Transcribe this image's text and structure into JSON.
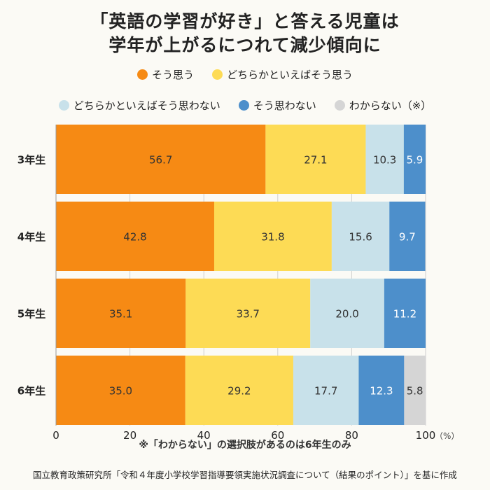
{
  "title_line1": "「英語の学習が好き」と答える児童は",
  "title_line2": "学年が上がるにつれて減少傾向に",
  "footnote": "※「わからない」の選択肢があるのは6年生のみ",
  "source": "国立教育政策研究所「令和４年度小学校学習指導要領実施状況調査について（結果のポイント）」を基に作成",
  "chart_data": {
    "type": "bar",
    "orientation": "horizontal",
    "stacked": true,
    "categories": [
      "3年生",
      "4年生",
      "5年生",
      "6年生"
    ],
    "series": [
      {
        "name": "そう思う",
        "color": "#f68a14",
        "values": [
          56.7,
          42.8,
          35.1,
          35.0
        ]
      },
      {
        "name": "どちらかといえばそう思う",
        "color": "#fddb55",
        "values": [
          27.1,
          31.8,
          33.7,
          29.2
        ]
      },
      {
        "name": "どちらかといえばそう思わない",
        "color": "#c8e1ea",
        "values": [
          10.3,
          15.6,
          20.0,
          17.7
        ]
      },
      {
        "name": "そう思わない",
        "color": "#4d8fcb",
        "values": [
          5.9,
          9.7,
          11.2,
          12.3
        ]
      },
      {
        "name": "わからない（※）",
        "color": "#d5d5d5",
        "values": [
          null,
          null,
          null,
          5.8
        ]
      }
    ],
    "xlim": [
      0,
      100
    ],
    "xticks": [
      0,
      20,
      40,
      60,
      80,
      100
    ],
    "x_unit": "（%）",
    "label_colors": {
      "そう思う": "#333333",
      "どちらかといえばそう思う": "#333333",
      "どちらかといえばそう思わない": "#333333",
      "そう思わない": "#ffffff",
      "わからない（※）": "#333333"
    }
  }
}
